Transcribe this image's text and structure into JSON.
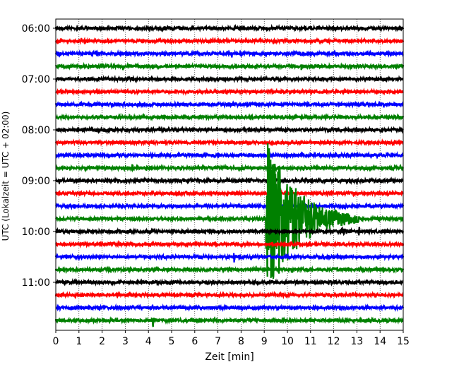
{
  "chart_data": {
    "type": "line",
    "xlabel": "Zeit  [min]",
    "ylabel": "UTC (Lokalzeit = UTC + 02:00)",
    "xlim": [
      0,
      15
    ],
    "x_ticks": [
      0,
      1,
      2,
      3,
      4,
      5,
      6,
      7,
      8,
      9,
      10,
      11,
      12,
      13,
      14,
      15
    ],
    "y_tick_labels": [
      "06:00",
      "07:00",
      "08:00",
      "09:00",
      "10:00",
      "11:00"
    ],
    "grid": "vertical dotted at each minute",
    "trace_interval_min": 15,
    "trace_colors": [
      "#000000",
      "#ff0000",
      "#0000ff",
      "#008000"
    ],
    "traces": [
      {
        "start": "06:00",
        "events": [
          {
            "t": 2.0,
            "amp": 0.35
          },
          {
            "t": 4.6,
            "amp": 0.3
          },
          {
            "t": 5.4,
            "amp": 0.25
          },
          {
            "t": 8.3,
            "amp": 0.2
          },
          {
            "t": 11.2,
            "amp": 0.2
          },
          {
            "t": 13.6,
            "amp": 0.2
          }
        ]
      },
      {
        "start": "06:15",
        "events": [
          {
            "t": 1.1,
            "amp": 0.25
          },
          {
            "t": 12.7,
            "amp": 0.2
          }
        ]
      },
      {
        "start": "06:30",
        "events": [
          {
            "t": 5.4,
            "amp": 0.25
          },
          {
            "t": 7.6,
            "amp": 0.35
          },
          {
            "t": 8.4,
            "amp": 0.2
          }
        ]
      },
      {
        "start": "06:45",
        "events": [
          {
            "t": 1.4,
            "amp": 0.25
          },
          {
            "t": 2.9,
            "amp": 0.3
          },
          {
            "t": 10.6,
            "amp": 0.3
          },
          {
            "t": 13.8,
            "amp": 0.2
          }
        ]
      },
      {
        "start": "07:00",
        "events": [
          {
            "t": 0.1,
            "amp": 0.25
          },
          {
            "t": 2.2,
            "amp": 0.2
          },
          {
            "t": 7.2,
            "amp": 0.25
          }
        ]
      },
      {
        "start": "07:15",
        "events": []
      },
      {
        "start": "07:30",
        "events": [
          {
            "t": 6.3,
            "amp": 0.2
          }
        ]
      },
      {
        "start": "07:45",
        "events": []
      },
      {
        "start": "08:00",
        "events": [
          {
            "t": 2.3,
            "amp": 0.2
          },
          {
            "t": 8.2,
            "amp": 0.25
          }
        ]
      },
      {
        "start": "08:15",
        "events": [
          {
            "t": 1.1,
            "amp": 0.2
          }
        ]
      },
      {
        "start": "08:30",
        "events": [
          {
            "t": 6.2,
            "amp": 0.2
          },
          {
            "t": 14.5,
            "amp": 0.3
          }
        ]
      },
      {
        "start": "08:45",
        "events": [
          {
            "t": 1.3,
            "amp": 0.35
          },
          {
            "t": 3.3,
            "amp": 0.45
          },
          {
            "t": 3.9,
            "amp": 0.3
          },
          {
            "t": 10.7,
            "amp": 0.25
          }
        ]
      },
      {
        "start": "09:00",
        "events": [
          {
            "t": 3.7,
            "amp": 0.2
          },
          {
            "t": 7.0,
            "amp": 0.25
          },
          {
            "t": 10.8,
            "amp": 0.25
          }
        ]
      },
      {
        "start": "09:15",
        "events": [
          {
            "t": 9.3,
            "amp": 0.25
          },
          {
            "t": 9.8,
            "amp": 0.2
          }
        ]
      },
      {
        "start": "09:30",
        "events": [
          {
            "t": 8.8,
            "amp": 0.25
          }
        ]
      },
      {
        "start": "09:45",
        "events": [
          {
            "t": 7.5,
            "amp": 0.2
          },
          {
            "t": 9.1,
            "amp": 6.5,
            "duration": 4.0
          },
          {
            "t": 12.9,
            "amp": 0.2
          }
        ]
      },
      {
        "start": "10:00",
        "events": [
          {
            "t": 7.3,
            "amp": 0.25
          },
          {
            "t": 12.3,
            "amp": 0.35,
            "duration": 1.2
          },
          {
            "t": 13.1,
            "amp": 0.45
          }
        ]
      },
      {
        "start": "10:15",
        "events": []
      },
      {
        "start": "10:30",
        "events": [
          {
            "t": 7.7,
            "amp": 0.45
          }
        ]
      },
      {
        "start": "10:45",
        "events": [
          {
            "t": 2.3,
            "amp": 0.2
          },
          {
            "t": 10.2,
            "amp": 0.25
          },
          {
            "t": 11.7,
            "amp": 0.3
          },
          {
            "t": 13.0,
            "amp": 0.25
          }
        ]
      },
      {
        "start": "11:00",
        "events": [
          {
            "t": 2.0,
            "amp": 0.25
          },
          {
            "t": 11.9,
            "amp": 0.2
          }
        ]
      },
      {
        "start": "11:15",
        "events": []
      },
      {
        "start": "11:30",
        "events": []
      },
      {
        "start": "11:45",
        "events": [
          {
            "t": 4.2,
            "amp": 0.6
          },
          {
            "t": 4.9,
            "amp": 0.2
          }
        ]
      }
    ]
  }
}
